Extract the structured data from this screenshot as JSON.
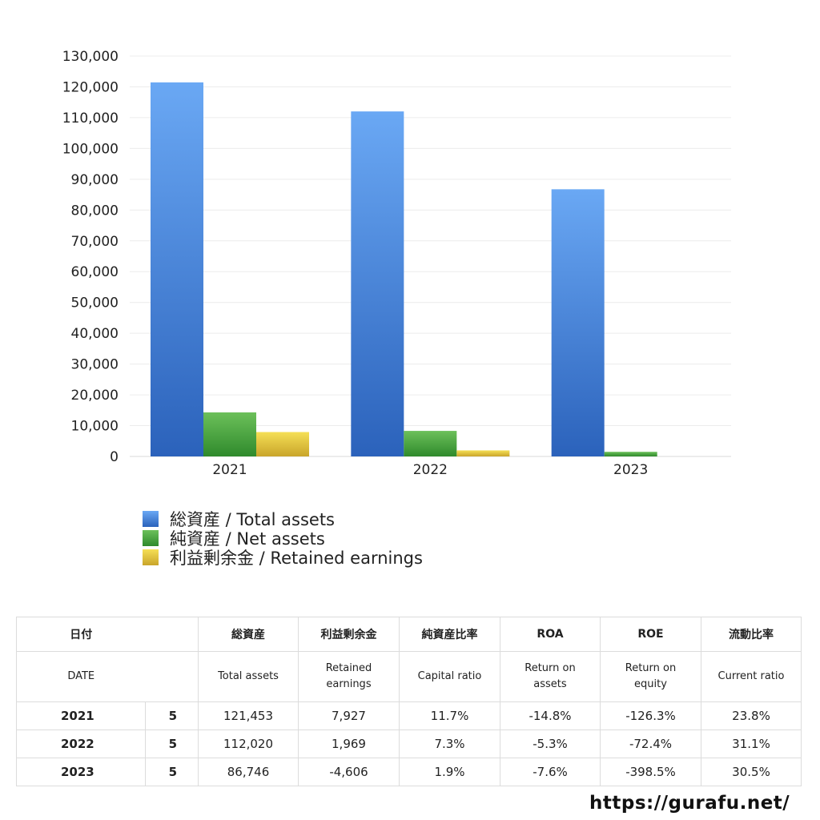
{
  "chart_data": {
    "type": "bar",
    "categories": [
      "2021",
      "2022",
      "2023"
    ],
    "series": [
      {
        "name": "総資産 / Total assets",
        "values": [
          121453,
          112020,
          86746
        ],
        "color": "#4a86dc"
      },
      {
        "name": "純資産 / Net assets",
        "values": [
          14300,
          8300,
          1500
        ],
        "color": "#4aa040"
      },
      {
        "name": "利益剰余金 / Retained earnings",
        "values": [
          7927,
          1969,
          -4606
        ],
        "color": "#e0c43a"
      }
    ],
    "ylim": [
      0,
      130000
    ],
    "yticks": [
      "0",
      "10,000",
      "20,000",
      "30,000",
      "40,000",
      "50,000",
      "60,000",
      "70,000",
      "80,000",
      "90,000",
      "100,000",
      "110,000",
      "120,000",
      "130,000"
    ],
    "grid": true,
    "legend_position": "bottom-left"
  },
  "table": {
    "header_ja": {
      "date": "日付",
      "total_assets": "総資産",
      "retained": "利益剰余金",
      "capital_ratio": "純資産比率",
      "roa": "ROA",
      "roe": "ROE",
      "current_ratio": "流動比率"
    },
    "header_en": {
      "date": "DATE",
      "total_assets": "Total assets",
      "retained_1": "Retained",
      "retained_2": "earnings",
      "capital_ratio": "Capital ratio",
      "roa_1": "Return on",
      "roa_2": "assets",
      "roe_1": "Return on",
      "roe_2": "equity",
      "current_ratio": "Current ratio"
    },
    "rows": [
      {
        "year": "2021",
        "month": "5",
        "total_assets": "121,453",
        "retained": "7,927",
        "capital_ratio": "11.7%",
        "roa": "-14.8%",
        "roe": "-126.3%",
        "current_ratio": "23.8%"
      },
      {
        "year": "2022",
        "month": "5",
        "total_assets": "112,020",
        "retained": "1,969",
        "capital_ratio": "7.3%",
        "roa": "-5.3%",
        "roe": "-72.4%",
        "current_ratio": "31.1%"
      },
      {
        "year": "2023",
        "month": "5",
        "total_assets": "86,746",
        "retained": "-4,606",
        "capital_ratio": "1.9%",
        "roa": "-7.6%",
        "roe": "-398.5%",
        "current_ratio": "30.5%"
      }
    ],
    "negative_color": "#d9472b"
  },
  "site_url": "https://gurafu.net/"
}
